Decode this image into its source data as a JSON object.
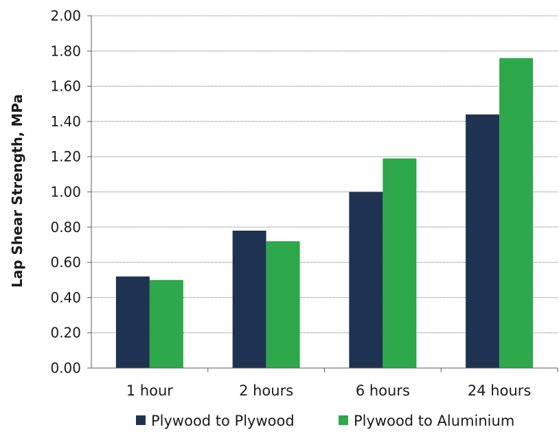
{
  "chart_data": {
    "type": "bar",
    "title": "",
    "xlabel": "",
    "ylabel": "Lap Shear Strength, MPa",
    "categories": [
      "1 hour",
      "2 hours",
      "6 hours",
      "24 hours"
    ],
    "series": [
      {
        "name": "Plywood to Plywood",
        "color": "#1e3352",
        "values": [
          0.52,
          0.78,
          1.0,
          1.44
        ]
      },
      {
        "name": "Plywood to Aluminium",
        "color": "#2da84a",
        "values": [
          0.5,
          0.72,
          1.19,
          1.76
        ]
      }
    ],
    "ylim": [
      0,
      2.0
    ],
    "yticks": [
      "0.00",
      "0.20",
      "0.40",
      "0.60",
      "0.80",
      "1.00",
      "1.20",
      "1.40",
      "1.60",
      "1.80",
      "2.00"
    ],
    "grid": true,
    "legend_position": "bottom"
  }
}
